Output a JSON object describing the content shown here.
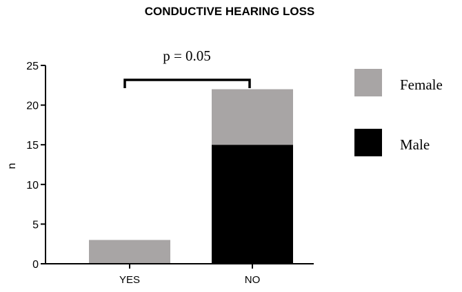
{
  "chart_data": {
    "type": "bar",
    "stacked": true,
    "title": "CONDUCTIVE HEARING LOSS",
    "xlabel": "",
    "ylabel": "n",
    "categories": [
      "YES",
      "NO"
    ],
    "series": [
      {
        "name": "Male",
        "values": [
          0,
          15
        ],
        "color": "#000000"
      },
      {
        "name": "Female",
        "values": [
          3,
          7
        ],
        "color": "#a8a5a5"
      }
    ],
    "ylim": [
      0,
      25
    ],
    "yticks": [
      0,
      5,
      10,
      15,
      20,
      25
    ],
    "grid": false,
    "legend": {
      "position": "right",
      "order": [
        "Female",
        "Male"
      ]
    },
    "annotations": [
      {
        "text": "p = 0.05",
        "type": "significance-bracket",
        "between": [
          "YES",
          "NO"
        ]
      }
    ]
  }
}
